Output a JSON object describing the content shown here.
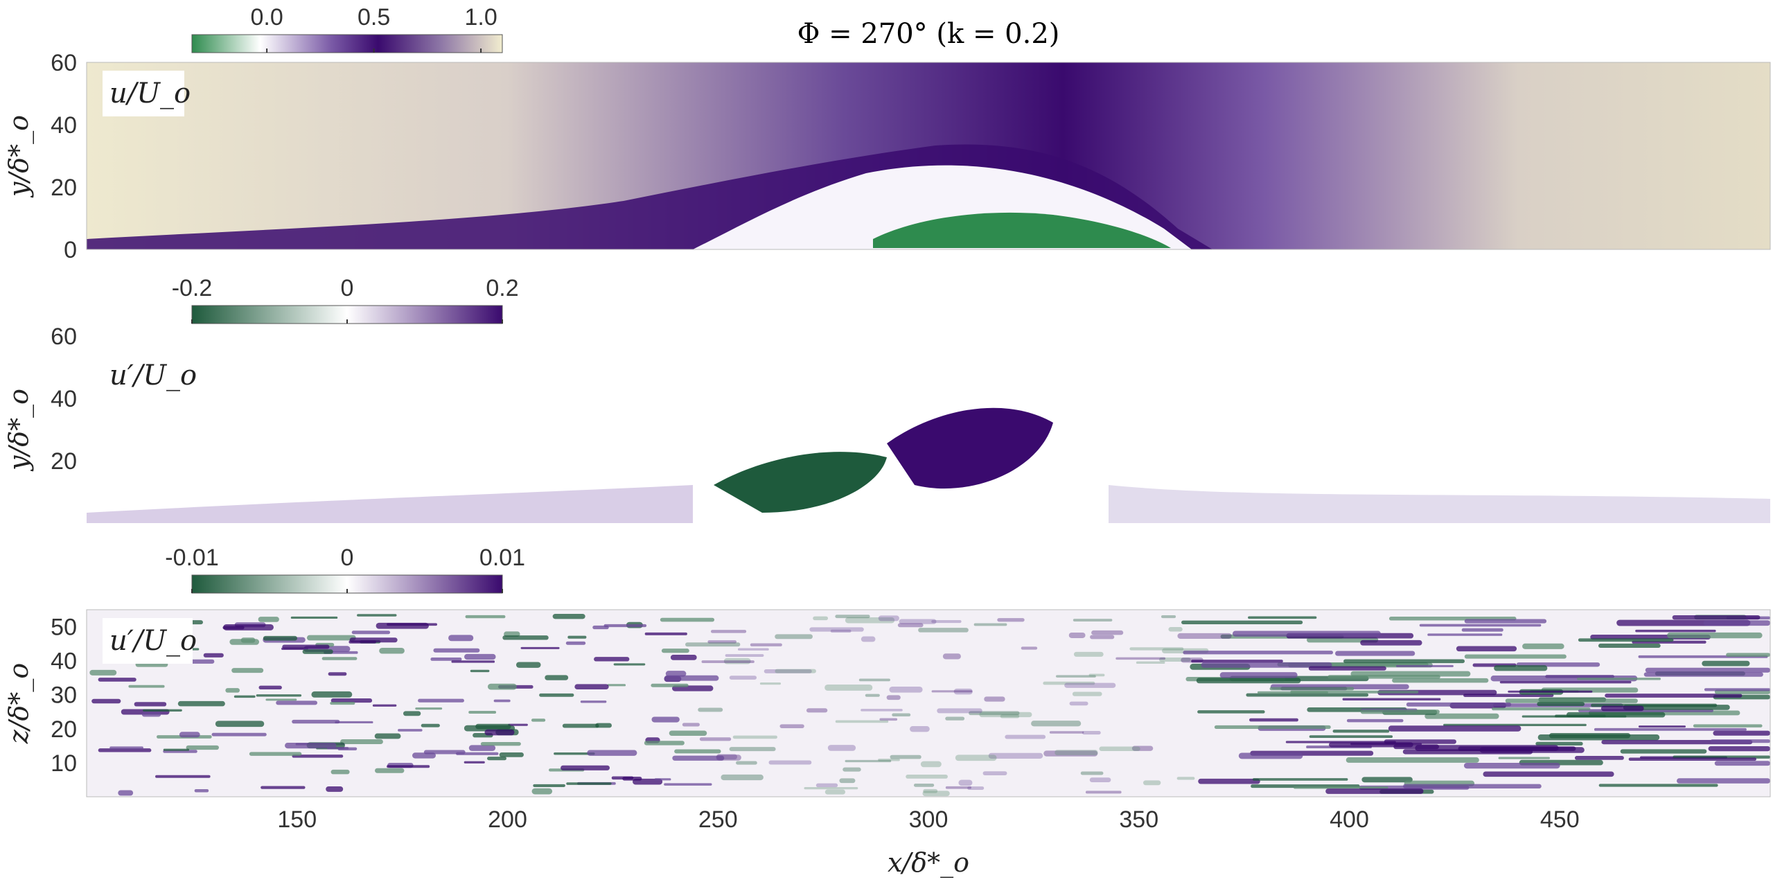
{
  "title": "Φ = 270° (k = 0.2)",
  "chart_data": [
    {
      "type": "heatmap",
      "panel_label": "u/U_o",
      "ylabel": "y/δ*_o",
      "xlim": [
        100,
        500
      ],
      "ylim": [
        0,
        60
      ],
      "yticks": [
        "0",
        "20",
        "40",
        "60"
      ],
      "colorbar": {
        "ticks": [
          "0.0",
          "0.5",
          "1.0"
        ],
        "range": [
          -0.35,
          1.1
        ],
        "colors": [
          "#2e8b4e",
          "#ffffff",
          "#7a5aa6",
          "#3a0a6e",
          "#f2edcf"
        ]
      }
    },
    {
      "type": "heatmap",
      "panel_label": "u′/U_o",
      "ylabel": "y/δ*_o",
      "xlim": [
        100,
        500
      ],
      "ylim": [
        0,
        60
      ],
      "yticks": [
        "20",
        "40",
        "60"
      ],
      "colorbar": {
        "ticks": [
          "-0.2",
          "0",
          "0.2"
        ],
        "range": [
          -0.2,
          0.2
        ],
        "colors": [
          "#1e5a3c",
          "#ffffff",
          "#3a0a6e"
        ]
      }
    },
    {
      "type": "heatmap",
      "panel_label": "u′/U_o",
      "ylabel": "z/δ*_o",
      "xlabel": "x/δ*_o",
      "xlim": [
        100,
        500
      ],
      "ylim": [
        0,
        55
      ],
      "yticks": [
        "10",
        "20",
        "30",
        "40",
        "50"
      ],
      "xticks": [
        "150",
        "200",
        "250",
        "300",
        "350",
        "400",
        "450"
      ],
      "colorbar": {
        "ticks": [
          "-0.01",
          "0",
          "0.01"
        ],
        "range": [
          -0.01,
          0.01
        ],
        "colors": [
          "#1e5a3c",
          "#ffffff",
          "#3a0a6e"
        ]
      }
    }
  ]
}
